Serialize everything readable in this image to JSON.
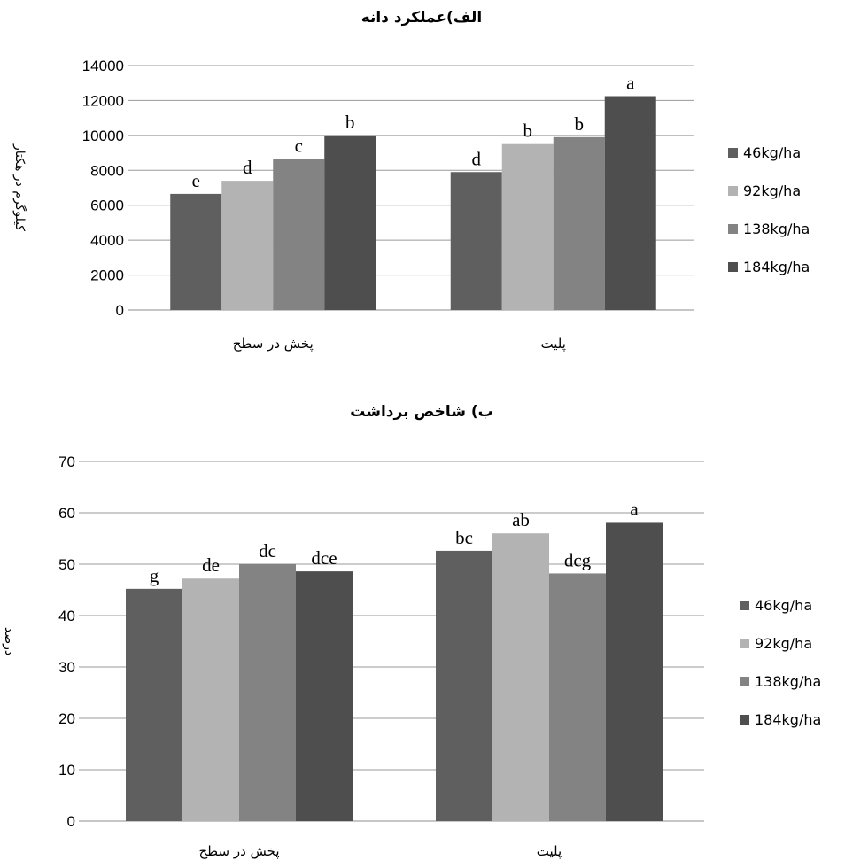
{
  "chart_data": [
    {
      "type": "bar",
      "title": "الف)عملکرد دانه",
      "ylabel": "کیلوگرم در هکتار",
      "xlabel": "",
      "ylim": [
        0,
        14000
      ],
      "yticks": [
        0,
        2000,
        4000,
        6000,
        8000,
        10000,
        12000,
        14000
      ],
      "grid": true,
      "legend_position": "right",
      "categories": [
        "پخش در سطح",
        "پلیت"
      ],
      "series": [
        {
          "name": "46kg/ha",
          "color": "#5f5f5f",
          "values": [
            6650,
            7900
          ],
          "labels": [
            "e",
            "d"
          ]
        },
        {
          "name": "92kg/ha",
          "color": "#b3b3b3",
          "values": [
            7400,
            9500
          ],
          "labels": [
            "d",
            "b"
          ]
        },
        {
          "name": "138kg/ha",
          "color": "#838383",
          "values": [
            8650,
            9900
          ],
          "labels": [
            "c",
            "b"
          ]
        },
        {
          "name": "184kg/ha",
          "color": "#4e4e4e",
          "values": [
            10000,
            12250
          ],
          "labels": [
            "b",
            "a"
          ]
        }
      ]
    },
    {
      "type": "bar",
      "title": "ب) شاخص برداشت",
      "ylabel": "درصد",
      "xlabel": "",
      "ylim": [
        0,
        70
      ],
      "yticks": [
        0,
        10,
        20,
        30,
        40,
        50,
        60,
        70
      ],
      "grid": true,
      "legend_position": "right",
      "categories": [
        "پخش در سطح",
        "پلیت"
      ],
      "series": [
        {
          "name": "46kg/ha",
          "color": "#5f5f5f",
          "values": [
            45.2,
            52.6
          ],
          "labels": [
            "g",
            "bc"
          ]
        },
        {
          "name": "92kg/ha",
          "color": "#b3b3b3",
          "values": [
            47.2,
            56.0
          ],
          "labels": [
            "de",
            "ab"
          ]
        },
        {
          "name": "138kg/ha",
          "color": "#838383",
          "values": [
            50.0,
            48.2
          ],
          "labels": [
            "dc",
            "dcg"
          ]
        },
        {
          "name": "184kg/ha",
          "color": "#4e4e4e",
          "values": [
            48.6,
            58.2
          ],
          "labels": [
            "dce",
            "a"
          ]
        }
      ]
    }
  ]
}
